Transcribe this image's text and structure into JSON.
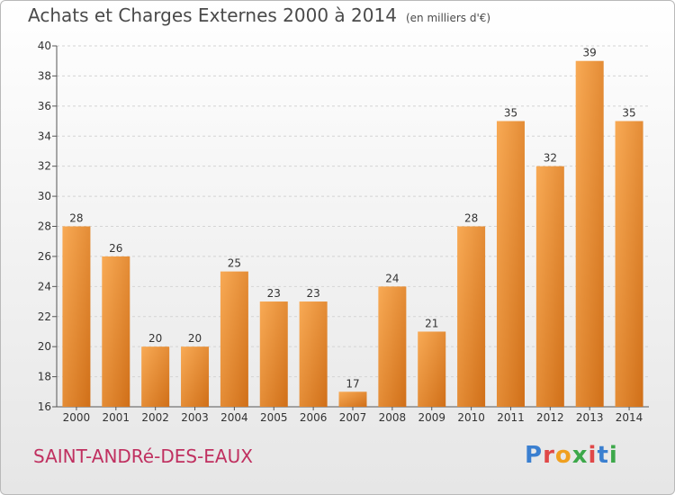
{
  "chart_data": {
    "type": "bar",
    "title": "Achats et Charges Externes 2000 à 2014",
    "subtitle": "(en milliers d'€)",
    "categories": [
      "2000",
      "2001",
      "2002",
      "2003",
      "2004",
      "2005",
      "2006",
      "2007",
      "2008",
      "2009",
      "2010",
      "2011",
      "2012",
      "2013",
      "2014"
    ],
    "values": [
      28,
      26,
      20,
      20,
      25,
      23,
      23,
      17,
      24,
      21,
      28,
      35,
      32,
      39,
      35
    ],
    "ylim": [
      16,
      40
    ],
    "yticks": [
      16,
      18,
      20,
      22,
      24,
      26,
      28,
      30,
      32,
      34,
      36,
      38,
      40
    ],
    "grid": true,
    "bar_color": "#f0953a"
  },
  "footer": {
    "place": "SAINT-ANDRé-DES-EAUX",
    "logo_letters": [
      "P",
      "r",
      "o",
      "x",
      "i",
      "t",
      "i"
    ]
  }
}
